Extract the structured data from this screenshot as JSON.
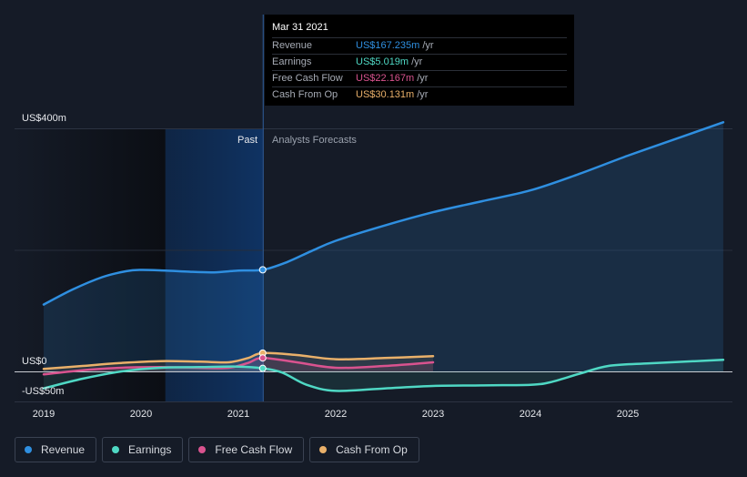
{
  "chart_data": {
    "type": "area",
    "y_axis": {
      "top_label": "US$400m",
      "zero_label": "US$0",
      "bottom_label": "-US$50m",
      "ylim": [
        -50,
        400
      ]
    },
    "x_axis": {
      "ticks": [
        "2019",
        "2020",
        "2021",
        "2022",
        "2023",
        "2024",
        "2025"
      ],
      "xlim": [
        2019,
        2025.98
      ]
    },
    "past_label": "Past",
    "forecast_label": "Analysts Forecasts",
    "current_date": 2021.25,
    "series": [
      {
        "name": "Revenue",
        "color": "#2f8fe0",
        "x": [
          2019.0,
          2019.3,
          2019.6,
          2019.85,
          2020.0,
          2020.25,
          2020.5,
          2020.75,
          2021.0,
          2021.25,
          2021.5,
          2021.75,
          2022.0,
          2022.5,
          2023.0,
          2023.5,
          2024.0,
          2024.5,
          2025.0,
          2025.5,
          2025.98
        ],
        "values": [
          110,
          135,
          155,
          165,
          167,
          166,
          164,
          163,
          166,
          167.235,
          180,
          198,
          215,
          240,
          262,
          280,
          298,
          325,
          355,
          383,
          410
        ]
      },
      {
        "name": "Earnings",
        "color": "#4fd8c4",
        "x": [
          2019.0,
          2019.4,
          2019.8,
          2020.2,
          2020.6,
          2021.0,
          2021.25,
          2021.45,
          2021.7,
          2022.0,
          2022.5,
          2023.0,
          2023.5,
          2024.0,
          2024.2,
          2024.5,
          2024.8,
          2025.2,
          2025.98
        ],
        "values": [
          -28,
          -12,
          0,
          6,
          7,
          8,
          5.019,
          -2,
          -22,
          -32,
          -28,
          -24,
          -23,
          -22,
          -18,
          -4,
          9,
          13,
          19
        ]
      },
      {
        "name": "Free Cash Flow",
        "color": "#d9538f",
        "x": [
          2019.0,
          2019.4,
          2019.8,
          2020.2,
          2020.6,
          2020.9,
          2021.1,
          2021.25,
          2021.6,
          2022.0,
          2022.5,
          2023.0
        ],
        "values": [
          -5,
          2,
          6,
          7,
          6,
          6,
          14,
          22.167,
          15,
          6,
          9,
          15
        ]
      },
      {
        "name": "Cash From Op",
        "color": "#e9b06a",
        "x": [
          2019.0,
          2019.4,
          2019.8,
          2020.2,
          2020.6,
          2020.9,
          2021.1,
          2021.25,
          2021.6,
          2022.0,
          2022.5,
          2023.0
        ],
        "values": [
          4,
          9,
          14,
          17,
          16,
          15,
          22,
          30.131,
          27,
          20,
          22,
          25
        ]
      }
    ]
  },
  "tooltip": {
    "date": "Mar 31 2021",
    "rows": [
      {
        "label": "Revenue",
        "value": "US$167.235m",
        "unit": "/yr",
        "color": "#2f8fe0"
      },
      {
        "label": "Earnings",
        "value": "US$5.019m",
        "unit": "/yr",
        "color": "#4fd8c4"
      },
      {
        "label": "Free Cash Flow",
        "value": "US$22.167m",
        "unit": "/yr",
        "color": "#d9538f"
      },
      {
        "label": "Cash From Op",
        "value": "US$30.131m",
        "unit": "/yr",
        "color": "#e9b06a"
      }
    ]
  },
  "legend": [
    {
      "label": "Revenue",
      "color": "#2f8fe0"
    },
    {
      "label": "Earnings",
      "color": "#4fd8c4"
    },
    {
      "label": "Free Cash Flow",
      "color": "#d9538f"
    },
    {
      "label": "Cash From Op",
      "color": "#e9b06a"
    }
  ]
}
